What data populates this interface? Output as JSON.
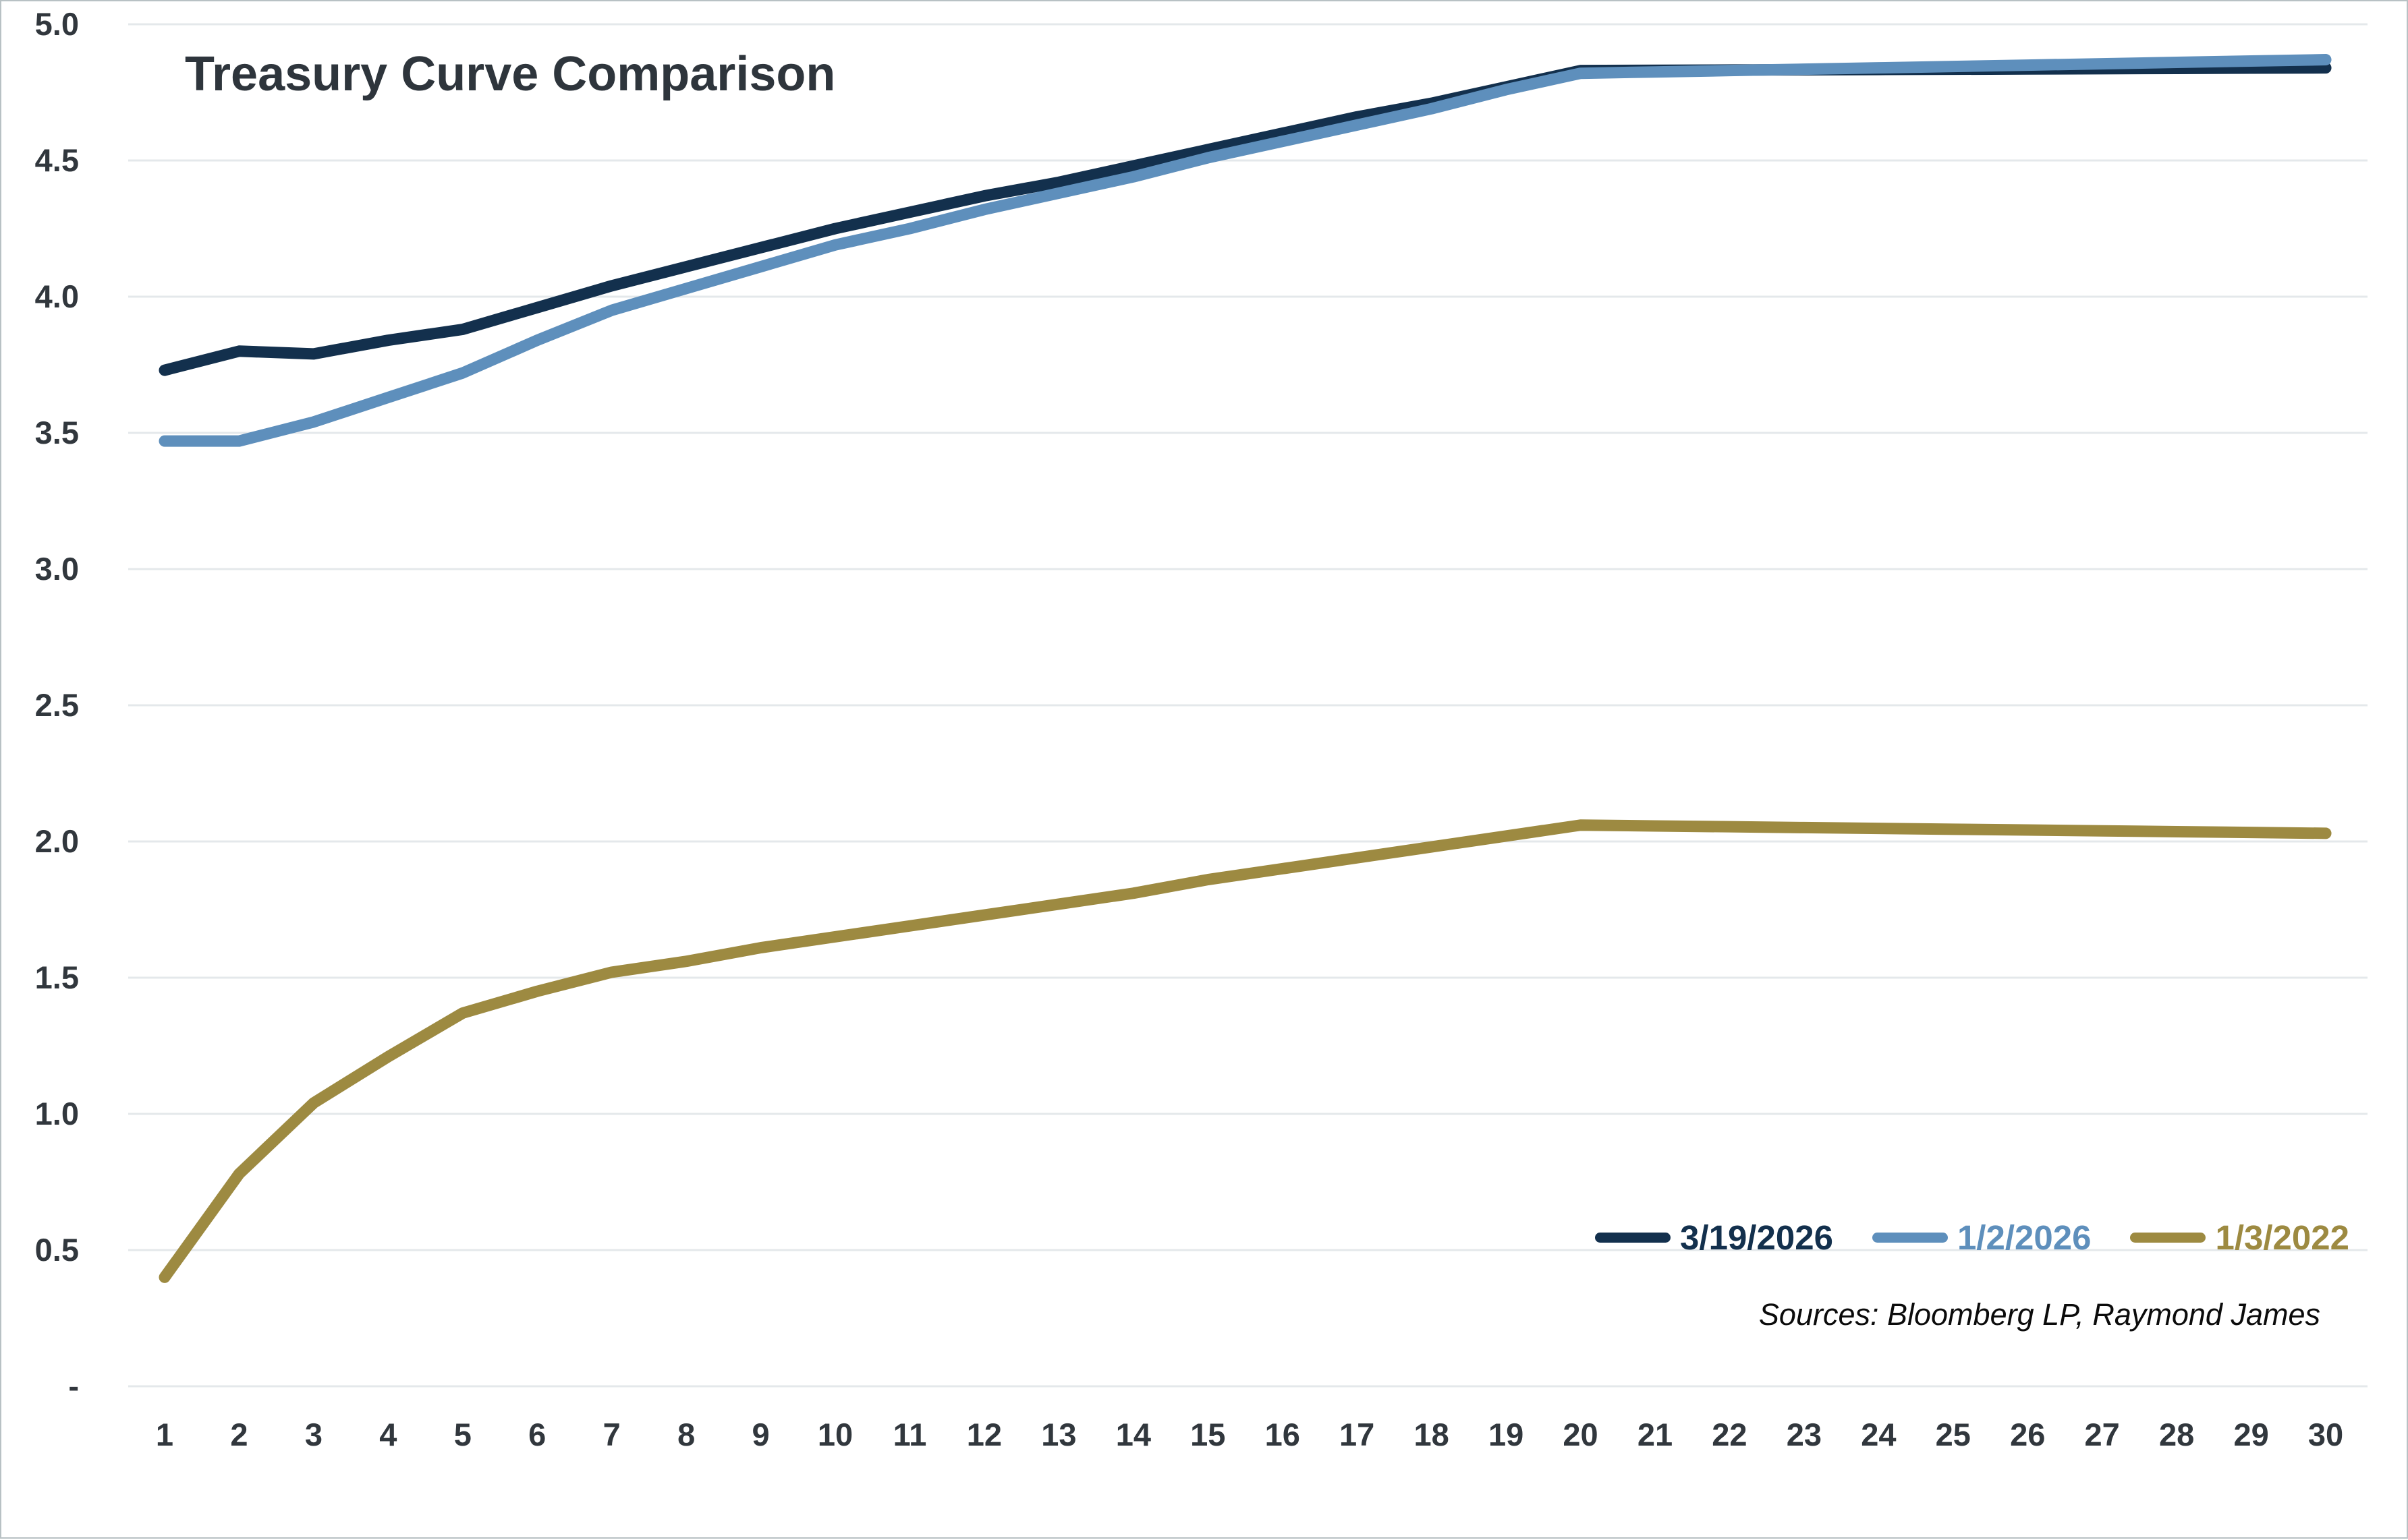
{
  "title": "Treasury Curve Comparison",
  "sources_note": "Sources: Bloomberg LP, Raymond James",
  "colors": {
    "navy": "#13304d",
    "blue": "#5e8fbc",
    "gold": "#9d8a41",
    "axis_text": "#31373d",
    "title_text": "#2e353c",
    "gridline": "#e4e8eb"
  },
  "legend": {
    "position": "bottom-right",
    "items": [
      {
        "label": "3/19/2026",
        "color": "#13304d"
      },
      {
        "label": "1/2/2026",
        "color": "#5e8fbc"
      },
      {
        "label": "1/3/2022",
        "color": "#9d8a41"
      }
    ]
  },
  "chart_data": {
    "type": "line",
    "title": "Treasury Curve Comparison",
    "xlabel": "",
    "ylabel": "",
    "grid": true,
    "legend_position": "bottom-right",
    "ylim": [
      0,
      5
    ],
    "y_ticks": [
      0,
      0.5,
      1.0,
      1.5,
      2.0,
      2.5,
      3.0,
      3.5,
      4.0,
      4.5,
      5.0
    ],
    "y_tick_labels": [
      "-",
      "0.5",
      "1.0",
      "1.5",
      "2.0",
      "2.5",
      "3.0",
      "3.5",
      "4.0",
      "4.5",
      "5.0"
    ],
    "x": [
      1,
      2,
      3,
      4,
      5,
      6,
      7,
      8,
      9,
      10,
      11,
      12,
      13,
      14,
      15,
      16,
      17,
      18,
      19,
      20,
      21,
      22,
      23,
      24,
      25,
      26,
      27,
      28,
      29,
      30
    ],
    "x_tick_labels": [
      "1",
      "2",
      "3",
      "4",
      "5",
      "6",
      "7",
      "8",
      "9",
      "10",
      "11",
      "12",
      "13",
      "14",
      "15",
      "16",
      "17",
      "18",
      "19",
      "20",
      "21",
      "22",
      "23",
      "24",
      "25",
      "26",
      "27",
      "28",
      "29",
      "30"
    ],
    "series": [
      {
        "name": "3/19/2026",
        "color": "#13304d",
        "values": [
          3.73,
          3.8,
          3.79,
          3.84,
          3.88,
          3.96,
          4.04,
          4.11,
          4.18,
          4.25,
          4.31,
          4.37,
          4.42,
          4.48,
          4.54,
          4.6,
          4.66,
          4.71,
          4.77,
          4.83,
          4.831,
          4.832,
          4.833,
          4.834,
          4.835,
          4.836,
          4.837,
          4.838,
          4.839,
          4.84
        ]
      },
      {
        "name": "1/2/2026",
        "color": "#5e8fbc",
        "values": [
          3.47,
          3.47,
          3.54,
          3.63,
          3.72,
          3.84,
          3.95,
          4.03,
          4.11,
          4.19,
          4.25,
          4.32,
          4.38,
          4.44,
          4.51,
          4.57,
          4.63,
          4.69,
          4.76,
          4.82,
          4.825,
          4.83,
          4.835,
          4.84,
          4.845,
          4.85,
          4.855,
          4.86,
          4.865,
          4.87
        ]
      },
      {
        "name": "1/3/2022",
        "color": "#9d8a41",
        "values": [
          0.4,
          0.78,
          1.04,
          1.21,
          1.37,
          1.45,
          1.52,
          1.56,
          1.61,
          1.65,
          1.69,
          1.73,
          1.77,
          1.81,
          1.86,
          1.9,
          1.94,
          1.98,
          2.02,
          2.06,
          2.057,
          2.054,
          2.051,
          2.048,
          2.045,
          2.042,
          2.039,
          2.036,
          2.033,
          2.03
        ]
      }
    ]
  }
}
